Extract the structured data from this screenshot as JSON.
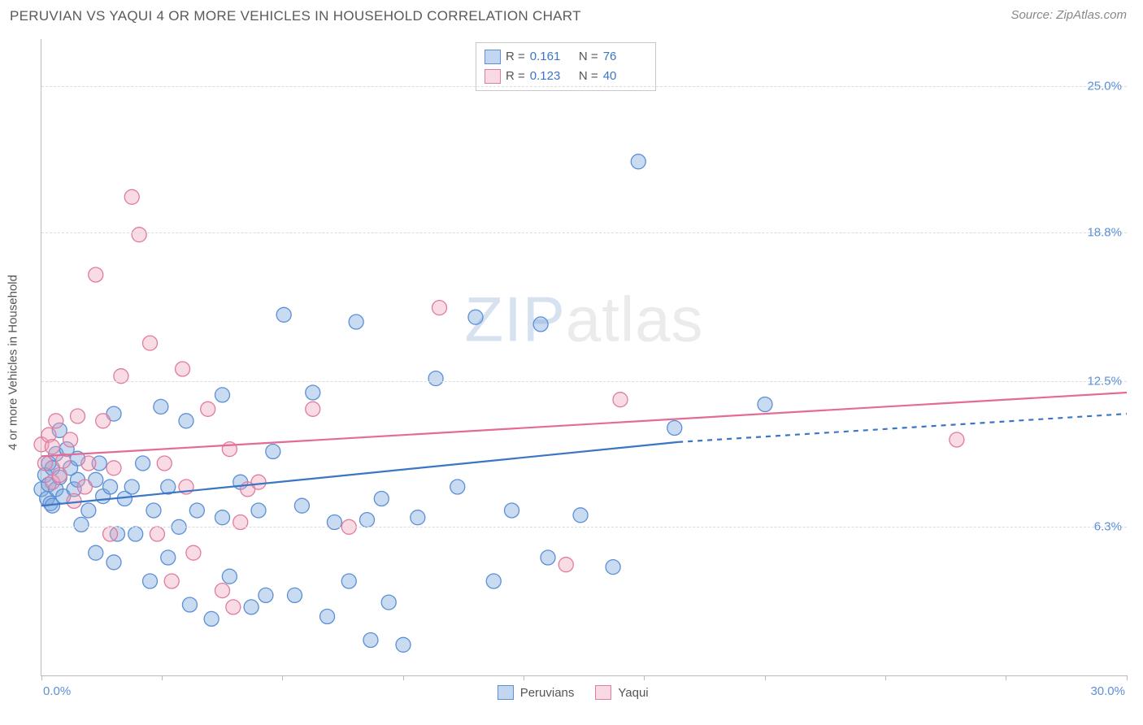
{
  "header": {
    "title": "PERUVIAN VS YAQUI 4 OR MORE VEHICLES IN HOUSEHOLD CORRELATION CHART",
    "source_label": "Source: ZipAtlas.com"
  },
  "chart": {
    "type": "scatter",
    "y_axis_title": "4 or more Vehicles in Household",
    "watermark": "ZIPatlas",
    "background_color": "#ffffff",
    "grid_color": "#dcdcdc",
    "axis_color": "#bbbbbb",
    "xlim": [
      0,
      30
    ],
    "ylim": [
      0,
      27
    ],
    "x_tick_positions": [
      0,
      3.33,
      6.66,
      10,
      13.33,
      16.66,
      20,
      23.33,
      26.66,
      30
    ],
    "x_min_label": "0.0%",
    "x_max_label": "30.0%",
    "y_ticks": [
      {
        "value": 6.3,
        "label": "6.3%"
      },
      {
        "value": 12.5,
        "label": "12.5%"
      },
      {
        "value": 18.8,
        "label": "18.8%"
      },
      {
        "value": 25.0,
        "label": "25.0%"
      }
    ],
    "series": [
      {
        "name": "Peruvians",
        "marker_fill": "rgba(120,165,220,0.40)",
        "marker_stroke": "#5b8fd6",
        "marker_radius": 9,
        "line_color": "#3b76c4",
        "line_width": 2.2,
        "trend_solid": {
          "x1": 0,
          "y1": 7.2,
          "x2": 17.6,
          "y2": 9.9
        },
        "trend_dashed": {
          "x1": 17.6,
          "y1": 9.9,
          "x2": 30,
          "y2": 11.1
        },
        "points": [
          [
            0.0,
            7.9
          ],
          [
            0.1,
            8.5
          ],
          [
            0.15,
            7.5
          ],
          [
            0.2,
            9.0
          ],
          [
            0.2,
            8.1
          ],
          [
            0.25,
            7.3
          ],
          [
            0.3,
            8.8
          ],
          [
            0.3,
            7.2
          ],
          [
            0.4,
            9.4
          ],
          [
            0.4,
            7.9
          ],
          [
            0.5,
            8.4
          ],
          [
            0.5,
            10.4
          ],
          [
            0.6,
            7.6
          ],
          [
            0.7,
            9.6
          ],
          [
            0.8,
            8.8
          ],
          [
            0.9,
            7.9
          ],
          [
            1.0,
            8.3
          ],
          [
            1.0,
            9.2
          ],
          [
            1.1,
            6.4
          ],
          [
            1.3,
            7.0
          ],
          [
            1.5,
            8.3
          ],
          [
            1.5,
            5.2
          ],
          [
            1.6,
            9.0
          ],
          [
            1.7,
            7.6
          ],
          [
            1.9,
            8.0
          ],
          [
            2.0,
            4.8
          ],
          [
            2.0,
            11.1
          ],
          [
            2.1,
            6.0
          ],
          [
            2.3,
            7.5
          ],
          [
            2.5,
            8.0
          ],
          [
            2.6,
            6.0
          ],
          [
            2.8,
            9.0
          ],
          [
            3.0,
            4.0
          ],
          [
            3.1,
            7.0
          ],
          [
            3.3,
            11.4
          ],
          [
            3.5,
            5.0
          ],
          [
            3.5,
            8.0
          ],
          [
            3.8,
            6.3
          ],
          [
            4.0,
            10.8
          ],
          [
            4.1,
            3.0
          ],
          [
            4.3,
            7.0
          ],
          [
            4.7,
            2.4
          ],
          [
            5.0,
            6.7
          ],
          [
            5.0,
            11.9
          ],
          [
            5.2,
            4.2
          ],
          [
            5.5,
            8.2
          ],
          [
            5.8,
            2.9
          ],
          [
            6.0,
            7.0
          ],
          [
            6.2,
            3.4
          ],
          [
            6.4,
            9.5
          ],
          [
            6.7,
            15.3
          ],
          [
            7.0,
            3.4
          ],
          [
            7.2,
            7.2
          ],
          [
            7.5,
            12.0
          ],
          [
            7.9,
            2.5
          ],
          [
            8.1,
            6.5
          ],
          [
            8.5,
            4.0
          ],
          [
            8.7,
            15.0
          ],
          [
            9.0,
            6.6
          ],
          [
            9.1,
            1.5
          ],
          [
            9.4,
            7.5
          ],
          [
            9.6,
            3.1
          ],
          [
            10.0,
            1.3
          ],
          [
            10.4,
            6.7
          ],
          [
            10.9,
            12.6
          ],
          [
            11.5,
            8.0
          ],
          [
            12.0,
            15.2
          ],
          [
            12.5,
            4.0
          ],
          [
            13.0,
            7.0
          ],
          [
            13.8,
            14.9
          ],
          [
            14.0,
            5.0
          ],
          [
            14.9,
            6.8
          ],
          [
            15.8,
            4.6
          ],
          [
            16.5,
            21.8
          ],
          [
            17.5,
            10.5
          ],
          [
            20.0,
            11.5
          ]
        ]
      },
      {
        "name": "Yaqui",
        "marker_fill": "rgba(240,160,185,0.38)",
        "marker_stroke": "#e07ba0",
        "marker_radius": 9,
        "line_color": "#e46b94",
        "line_width": 2.2,
        "trend_solid": {
          "x1": 0,
          "y1": 9.3,
          "x2": 30,
          "y2": 12.0
        },
        "trend_dashed": null,
        "points": [
          [
            0.0,
            9.8
          ],
          [
            0.1,
            9.0
          ],
          [
            0.2,
            10.2
          ],
          [
            0.3,
            8.2
          ],
          [
            0.3,
            9.7
          ],
          [
            0.4,
            10.8
          ],
          [
            0.5,
            8.5
          ],
          [
            0.6,
            9.1
          ],
          [
            0.8,
            10.0
          ],
          [
            0.9,
            7.4
          ],
          [
            1.0,
            11.0
          ],
          [
            1.2,
            8.0
          ],
          [
            1.3,
            9.0
          ],
          [
            1.5,
            17.0
          ],
          [
            1.7,
            10.8
          ],
          [
            1.9,
            6.0
          ],
          [
            2.0,
            8.8
          ],
          [
            2.2,
            12.7
          ],
          [
            2.5,
            20.3
          ],
          [
            2.7,
            18.7
          ],
          [
            3.0,
            14.1
          ],
          [
            3.2,
            6.0
          ],
          [
            3.4,
            9.0
          ],
          [
            3.6,
            4.0
          ],
          [
            3.9,
            13.0
          ],
          [
            4.0,
            8.0
          ],
          [
            4.2,
            5.2
          ],
          [
            4.6,
            11.3
          ],
          [
            5.0,
            3.6
          ],
          [
            5.2,
            9.6
          ],
          [
            5.5,
            6.5
          ],
          [
            5.7,
            7.9
          ],
          [
            6.0,
            8.2
          ],
          [
            7.5,
            11.3
          ],
          [
            8.5,
            6.3
          ],
          [
            11.0,
            15.6
          ],
          [
            14.5,
            4.7
          ],
          [
            16.0,
            11.7
          ],
          [
            25.3,
            10.0
          ],
          [
            5.3,
            2.9
          ]
        ]
      }
    ],
    "stats_legend": {
      "rows": [
        {
          "swatch": "blue",
          "r": "0.161",
          "n": "76"
        },
        {
          "swatch": "pink",
          "r": "0.123",
          "n": "40"
        }
      ],
      "labels": {
        "r_prefix": "R  =",
        "n_prefix": "N  ="
      }
    },
    "series_legend": [
      {
        "swatch": "blue",
        "label": "Peruvians"
      },
      {
        "swatch": "pink",
        "label": "Yaqui"
      }
    ]
  }
}
